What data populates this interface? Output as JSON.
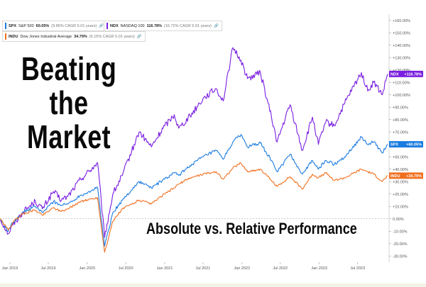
{
  "overlay": {
    "title_lines": [
      "Beating",
      "the",
      "Market"
    ],
    "subtitle": "Absolute vs. Relative Performance"
  },
  "legend": [
    {
      "symbol": "SPX",
      "name": "S&P 500",
      "value": "60.05%",
      "cagr": "(9.85% CAGR 5.01 years)",
      "color": "#1a7be0"
    },
    {
      "symbol": "NDX",
      "name": "NASDAQ 100",
      "value": "116.78%",
      "cagr": "(16.72% CAGR 5.01 years)",
      "color": "#7a1ee0"
    },
    {
      "symbol": "INDU",
      "name": "Dow Jones Industrial Average",
      "value": "34.79%",
      "cagr": "(6.15% CAGR 5.01 years)",
      "color": "#f07020"
    }
  ],
  "chart_data": {
    "type": "line",
    "y_unit": "percent",
    "ylim": [
      -35,
      165
    ],
    "y_ticks": [
      -30,
      -20,
      -10,
      0,
      10,
      20,
      30,
      40,
      50,
      60,
      70,
      80,
      90,
      100,
      110,
      120,
      130,
      140,
      150,
      160
    ],
    "y_tick_labels": [
      "-30.00%",
      "-20.00%",
      "-10.00%",
      "0.00%",
      "+10.00%",
      "+20.00%",
      "+30.00%",
      "+40.00%",
      "+50.00%",
      "+60.00%",
      "+70.00%",
      "+80.00%",
      "+90.00%",
      "+100.00%",
      "+110.00%",
      "+120.00%",
      "+130.00%",
      "+140.00%",
      "+150.00%",
      "+160.00%"
    ],
    "xlim": [
      "2018-11-15",
      "2023-11-20"
    ],
    "x_ticks": [
      {
        "date": "2019-01-01",
        "label": "Jan 2019"
      },
      {
        "date": "2019-07-01",
        "label": "Jul 2019"
      },
      {
        "date": "2020-01-01",
        "label": "Jan 2020"
      },
      {
        "date": "2020-07-01",
        "label": "Jul 2020"
      },
      {
        "date": "2021-01-01",
        "label": "Jan 2021"
      },
      {
        "date": "2021-07-01",
        "label": "Jul 2021"
      },
      {
        "date": "2022-01-01",
        "label": "Jan 2022"
      },
      {
        "date": "2022-07-01",
        "label": "Jul 2022"
      },
      {
        "date": "2023-01-01",
        "label": "Jan 2023"
      },
      {
        "date": "2023-07-01",
        "label": "Jul 2023"
      }
    ],
    "zero_line": true,
    "series": [
      {
        "name": "NDX",
        "color": "#7a1ee0",
        "end_label": "+116.78%",
        "x": [
          "2018-11-15",
          "2018-12-24",
          "2019-01-15",
          "2019-03-01",
          "2019-05-01",
          "2019-06-03",
          "2019-07-26",
          "2019-09-01",
          "2019-10-01",
          "2019-12-01",
          "2020-02-19",
          "2020-03-23",
          "2020-05-01",
          "2020-06-15",
          "2020-09-02",
          "2020-10-30",
          "2021-01-01",
          "2021-02-15",
          "2021-03-08",
          "2021-05-01",
          "2021-07-01",
          "2021-09-01",
          "2021-10-04",
          "2021-11-19",
          "2021-12-27",
          "2022-01-27",
          "2022-03-29",
          "2022-05-20",
          "2022-06-16",
          "2022-08-16",
          "2022-10-13",
          "2022-11-30",
          "2022-12-28",
          "2023-02-01",
          "2023-03-13",
          "2023-05-01",
          "2023-07-19",
          "2023-08-18",
          "2023-09-15",
          "2023-10-26",
          "2023-11-20"
        ],
        "y": [
          0,
          -12,
          -5,
          5,
          14,
          8,
          22,
          15,
          18,
          32,
          45,
          -15,
          20,
          35,
          70,
          58,
          75,
          84,
          73,
          83,
          97,
          105,
          95,
          138,
          128,
          113,
          118,
          82,
          62,
          92,
          55,
          82,
          60,
          78,
          75,
          93,
          118,
          103,
          110,
          100,
          116.78
        ]
      },
      {
        "name": "SPX",
        "color": "#1a7be0",
        "end_label": "+60.05%",
        "x": [
          "2018-11-15",
          "2018-12-24",
          "2019-01-15",
          "2019-03-01",
          "2019-05-01",
          "2019-06-03",
          "2019-07-26",
          "2019-09-01",
          "2019-10-01",
          "2019-12-01",
          "2020-02-19",
          "2020-03-23",
          "2020-05-01",
          "2020-06-15",
          "2020-09-02",
          "2020-10-30",
          "2021-01-01",
          "2021-02-15",
          "2021-03-08",
          "2021-05-01",
          "2021-07-01",
          "2021-09-01",
          "2021-10-04",
          "2021-11-19",
          "2021-12-27",
          "2022-01-27",
          "2022-03-29",
          "2022-05-20",
          "2022-06-16",
          "2022-08-16",
          "2022-10-13",
          "2022-11-30",
          "2022-12-28",
          "2023-02-01",
          "2023-03-13",
          "2023-05-01",
          "2023-07-19",
          "2023-08-18",
          "2023-09-15",
          "2023-10-26",
          "2023-11-20"
        ],
        "y": [
          0,
          -10,
          -3,
          5,
          10,
          5,
          14,
          11,
          12,
          19,
          25,
          -22,
          5,
          15,
          30,
          25,
          32,
          37,
          35,
          43,
          50,
          55,
          48,
          62,
          68,
          58,
          61,
          47,
          38,
          52,
          36,
          47,
          40,
          47,
          44,
          50,
          66,
          60,
          62,
          53,
          60.05
        ]
      },
      {
        "name": "INDU",
        "color": "#f07020",
        "end_label": "+34.79%",
        "x": [
          "2018-11-15",
          "2018-12-24",
          "2019-01-15",
          "2019-03-01",
          "2019-05-01",
          "2019-06-03",
          "2019-07-26",
          "2019-09-01",
          "2019-10-01",
          "2019-12-01",
          "2020-02-19",
          "2020-03-23",
          "2020-05-01",
          "2020-06-15",
          "2020-09-02",
          "2020-10-30",
          "2021-01-01",
          "2021-02-15",
          "2021-03-08",
          "2021-05-01",
          "2021-07-01",
          "2021-09-01",
          "2021-10-04",
          "2021-11-19",
          "2021-12-27",
          "2022-01-27",
          "2022-03-29",
          "2022-05-20",
          "2022-06-16",
          "2022-08-16",
          "2022-10-13",
          "2022-11-30",
          "2022-12-28",
          "2023-02-01",
          "2023-03-13",
          "2023-05-01",
          "2023-07-19",
          "2023-08-18",
          "2023-09-15",
          "2023-10-26",
          "2023-11-20"
        ],
        "y": [
          0,
          -9,
          -3,
          4,
          7,
          3,
          9,
          6,
          8,
          14,
          17,
          -27,
          -2,
          8,
          15,
          12,
          20,
          25,
          28,
          33,
          36,
          38,
          32,
          41,
          45,
          38,
          40,
          31,
          26,
          34,
          24,
          36,
          33,
          37,
          31,
          33,
          40,
          38,
          36,
          30,
          34.79
        ]
      }
    ]
  }
}
